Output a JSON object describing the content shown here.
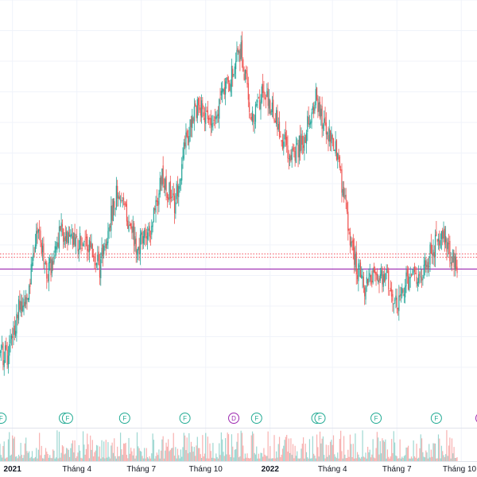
{
  "chart_data": {
    "type": "candlestick",
    "x_axis": {
      "ticks": [
        {
          "label": "2021",
          "bold": true,
          "index": 12
        },
        {
          "label": "Tháng 4",
          "bold": false,
          "index": 74
        },
        {
          "label": "Tháng 7",
          "bold": false,
          "index": 136
        },
        {
          "label": "Tháng 10",
          "bold": false,
          "index": 198
        },
        {
          "label": "2022",
          "bold": true,
          "index": 260
        },
        {
          "label": "Tháng 4",
          "bold": false,
          "index": 320
        },
        {
          "label": "Tháng 7",
          "bold": false,
          "index": 382
        },
        {
          "label": "Tháng 10",
          "bold": false,
          "index": 444
        }
      ]
    },
    "price_range": [
      28,
      112
    ],
    "reference_lines": [
      {
        "kind": "support",
        "value": 57.5,
        "color": "#9C27B0",
        "style": "solid"
      },
      {
        "kind": "last-price",
        "value": 60.2,
        "color": "#F23645",
        "style": "dotted"
      },
      {
        "kind": "reference",
        "value": 61.0,
        "color": "#F23645",
        "style": "dotted"
      }
    ],
    "price_anchors": [
      [
        0,
        37.5
      ],
      [
        8,
        37.8
      ],
      [
        18,
        49
      ],
      [
        28,
        53
      ],
      [
        36,
        66
      ],
      [
        46,
        56
      ],
      [
        58,
        66
      ],
      [
        70,
        64
      ],
      [
        84,
        63
      ],
      [
        96,
        58
      ],
      [
        112,
        75
      ],
      [
        122,
        70
      ],
      [
        132,
        62
      ],
      [
        146,
        67
      ],
      [
        156,
        79
      ],
      [
        168,
        72
      ],
      [
        178,
        86
      ],
      [
        190,
        95
      ],
      [
        204,
        92
      ],
      [
        220,
        100
      ],
      [
        232,
        108
      ],
      [
        242,
        92
      ],
      [
        254,
        98
      ],
      [
        266,
        92
      ],
      [
        278,
        83
      ],
      [
        292,
        87
      ],
      [
        304,
        97
      ],
      [
        310,
        92
      ],
      [
        322,
        86
      ],
      [
        330,
        76
      ],
      [
        340,
        60
      ],
      [
        350,
        53
      ],
      [
        360,
        57
      ],
      [
        372,
        55
      ],
      [
        382,
        50
      ],
      [
        392,
        55
      ],
      [
        404,
        55
      ],
      [
        414,
        61
      ],
      [
        424,
        65
      ],
      [
        432,
        62
      ],
      [
        440,
        58
      ]
    ],
    "candle_count": 441,
    "volume_range": [
      0,
      100
    ],
    "events": [
      {
        "label": "D",
        "kind": "dividend",
        "index": 0,
        "color": "#9C27B0"
      },
      {
        "label": "F",
        "kind": "financial",
        "index": 1,
        "color": "#22AB94"
      },
      {
        "label": "F",
        "kind": "financial",
        "index": 62,
        "color": "#22AB94"
      },
      {
        "label": "F",
        "kind": "financial",
        "index": 65,
        "color": "#22AB94"
      },
      {
        "label": "F",
        "kind": "financial",
        "index": 120,
        "color": "#22AB94"
      },
      {
        "label": "F",
        "kind": "financial",
        "index": 178,
        "color": "#22AB94"
      },
      {
        "label": "D",
        "kind": "dividend",
        "index": 225,
        "color": "#9C27B0"
      },
      {
        "label": "F",
        "kind": "financial",
        "index": 247,
        "color": "#22AB94"
      },
      {
        "label": "F",
        "kind": "financial",
        "index": 305,
        "color": "#22AB94"
      },
      {
        "label": "F",
        "kind": "financial",
        "index": 308,
        "color": "#22AB94"
      },
      {
        "label": "F",
        "kind": "financial",
        "index": 362,
        "color": "#22AB94"
      },
      {
        "label": "F",
        "kind": "financial",
        "index": 420,
        "color": "#22AB94"
      },
      {
        "label": "D",
        "kind": "dividend",
        "index": 478,
        "color": "#9C27B0"
      }
    ],
    "colors": {
      "up": "#26A69A",
      "down": "#EF5350",
      "grid": "#F0F3FA",
      "volume_up": "#26A69A",
      "volume_down": "#EF5350"
    },
    "grid": true
  }
}
